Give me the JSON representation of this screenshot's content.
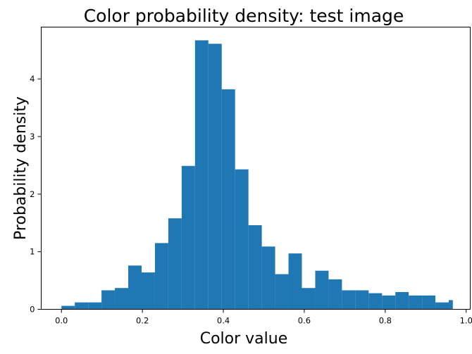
{
  "chart_data": {
    "type": "bar",
    "title": "Color probability density: test image",
    "xlabel": "Color value",
    "ylabel": "Probability density",
    "xlim": [
      -0.05,
      1.01
    ],
    "ylim": [
      0,
      4.9
    ],
    "xticks": [
      0.0,
      0.2,
      0.4,
      0.6,
      0.8,
      1.0
    ],
    "xtick_labels": [
      "0.0",
      "0.2",
      "0.4",
      "0.6",
      "0.8",
      "1.0"
    ],
    "yticks": [
      0,
      1,
      2,
      3,
      4
    ],
    "ytick_labels": [
      "0",
      "1",
      "2",
      "3",
      "4"
    ],
    "bin_edges": [
      0.0,
      0.033,
      0.066,
      0.099,
      0.132,
      0.165,
      0.198,
      0.231,
      0.264,
      0.297,
      0.33,
      0.363,
      0.396,
      0.429,
      0.462,
      0.495,
      0.528,
      0.561,
      0.594,
      0.627,
      0.66,
      0.693,
      0.726,
      0.759,
      0.792,
      0.825,
      0.858,
      0.891,
      0.924,
      0.957,
      0.967
    ],
    "values": [
      0.06,
      0.12,
      0.12,
      0.33,
      0.37,
      0.76,
      0.64,
      1.15,
      1.58,
      2.49,
      4.67,
      4.61,
      3.82,
      2.43,
      1.46,
      1.09,
      0.61,
      0.97,
      0.37,
      0.67,
      0.52,
      0.33,
      0.33,
      0.28,
      0.24,
      0.3,
      0.24,
      0.24,
      0.12,
      0.16
    ],
    "grid": false,
    "bar_color": "#1f77b4"
  }
}
